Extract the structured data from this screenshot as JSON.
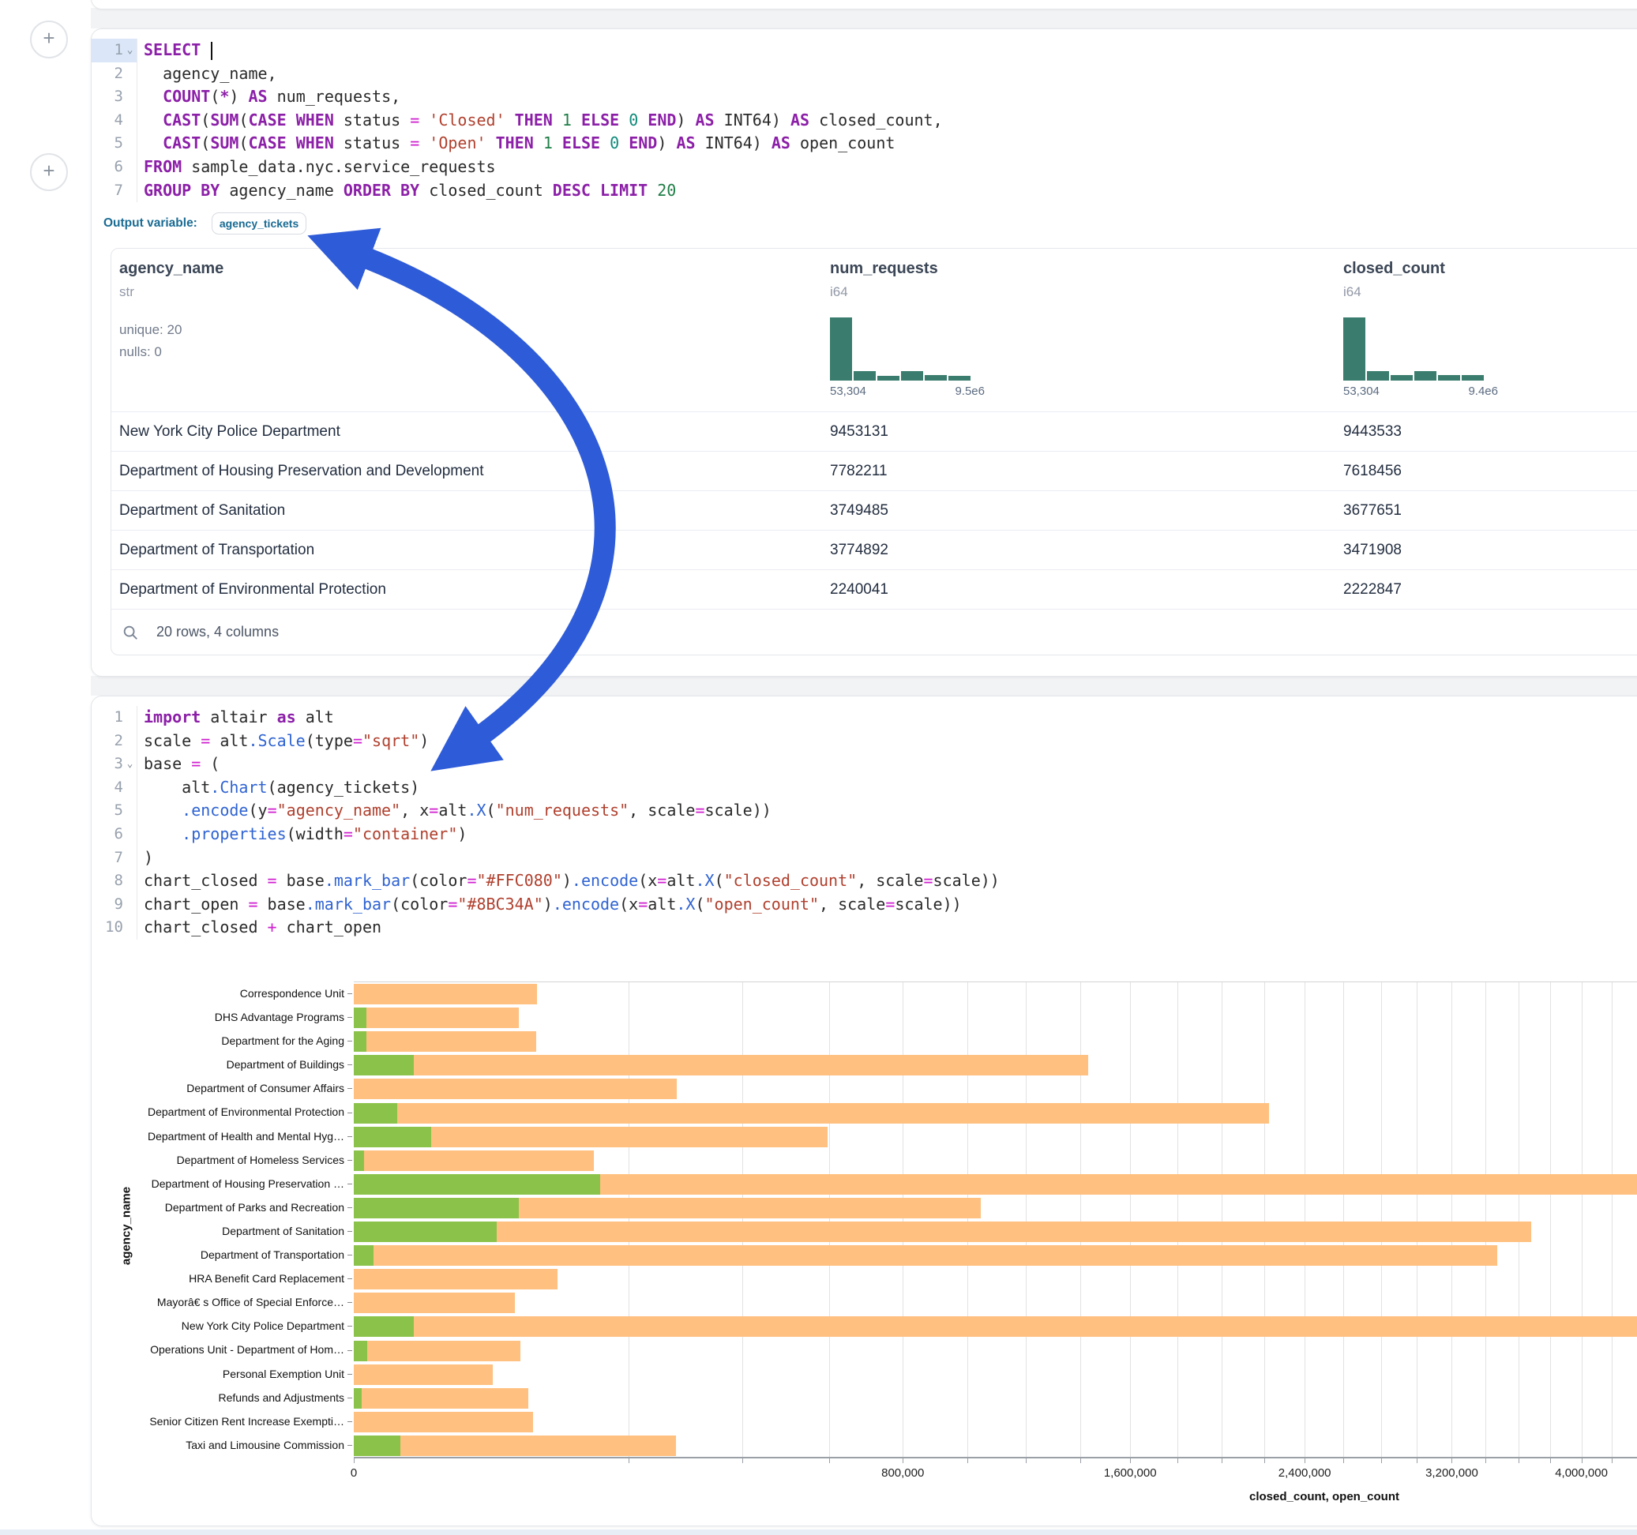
{
  "colors": {
    "closed_bar": "#FFC080",
    "open_bar": "#8BC34A",
    "histogram": "#3a7d6e",
    "arrow": "#2e5bd8",
    "accent_teal": "#1a6b93"
  },
  "sql_cell": {
    "add_button_label": "+",
    "lines": [
      {
        "n": "1",
        "chev": true,
        "hl": true,
        "cursor": true,
        "t": [
          [
            "kw",
            "SELECT"
          ],
          [
            "pl",
            " "
          ]
        ]
      },
      {
        "n": "2",
        "t": [
          [
            "pl",
            "  agency_name,"
          ]
        ]
      },
      {
        "n": "3",
        "t": [
          [
            "pl",
            "  "
          ],
          [
            "kw",
            "COUNT"
          ],
          [
            "pl",
            "("
          ],
          [
            "kw",
            "*"
          ],
          [
            "pl",
            ") "
          ],
          [
            "kw",
            "AS"
          ],
          [
            "pl",
            " num_requests,"
          ]
        ]
      },
      {
        "n": "4",
        "t": [
          [
            "pl",
            "  "
          ],
          [
            "kw",
            "CAST"
          ],
          [
            "pl",
            "("
          ],
          [
            "kw",
            "SUM"
          ],
          [
            "pl",
            "("
          ],
          [
            "kw",
            "CASE"
          ],
          [
            "pl",
            " "
          ],
          [
            "kw",
            "WHEN"
          ],
          [
            "pl",
            " status "
          ],
          [
            "op",
            "="
          ],
          [
            "pl",
            " "
          ],
          [
            "str",
            "'Closed'"
          ],
          [
            "pl",
            " "
          ],
          [
            "kw",
            "THEN"
          ],
          [
            "pl",
            " "
          ],
          [
            "num",
            "1"
          ],
          [
            "pl",
            " "
          ],
          [
            "kw",
            "ELSE"
          ],
          [
            "pl",
            " "
          ],
          [
            "num0",
            "0"
          ],
          [
            "pl",
            " "
          ],
          [
            "kw",
            "END"
          ],
          [
            "pl",
            ") "
          ],
          [
            "kw",
            "AS"
          ],
          [
            "pl",
            " INT64) "
          ],
          [
            "kw",
            "AS"
          ],
          [
            "pl",
            " closed_count,"
          ]
        ]
      },
      {
        "n": "5",
        "t": [
          [
            "pl",
            "  "
          ],
          [
            "kw",
            "CAST"
          ],
          [
            "pl",
            "("
          ],
          [
            "kw",
            "SUM"
          ],
          [
            "pl",
            "("
          ],
          [
            "kw",
            "CASE"
          ],
          [
            "pl",
            " "
          ],
          [
            "kw",
            "WHEN"
          ],
          [
            "pl",
            " status "
          ],
          [
            "op",
            "="
          ],
          [
            "pl",
            " "
          ],
          [
            "str",
            "'Open'"
          ],
          [
            "pl",
            " "
          ],
          [
            "kw",
            "THEN"
          ],
          [
            "pl",
            " "
          ],
          [
            "num",
            "1"
          ],
          [
            "pl",
            " "
          ],
          [
            "kw",
            "ELSE"
          ],
          [
            "pl",
            " "
          ],
          [
            "num0",
            "0"
          ],
          [
            "pl",
            " "
          ],
          [
            "kw",
            "END"
          ],
          [
            "pl",
            ") "
          ],
          [
            "kw",
            "AS"
          ],
          [
            "pl",
            " INT64) "
          ],
          [
            "kw",
            "AS"
          ],
          [
            "pl",
            " open_count"
          ]
        ]
      },
      {
        "n": "6",
        "t": [
          [
            "kw",
            "FROM"
          ],
          [
            "pl",
            " sample_data.nyc.service_requests"
          ]
        ]
      },
      {
        "n": "7",
        "t": [
          [
            "kw",
            "GROUP BY"
          ],
          [
            "pl",
            " agency_name "
          ],
          [
            "kw",
            "ORDER BY"
          ],
          [
            "pl",
            " closed_count "
          ],
          [
            "kw",
            "DESC"
          ],
          [
            "pl",
            " "
          ],
          [
            "kw",
            "LIMIT"
          ],
          [
            "pl",
            " "
          ],
          [
            "num",
            "20"
          ]
        ]
      }
    ],
    "output_variable_label": "Output variable:",
    "output_variable_value": "agency_tickets"
  },
  "table": {
    "columns": [
      {
        "name": "agency_name",
        "type": "str",
        "stats": [
          "unique: 20",
          "nulls: 0"
        ]
      },
      {
        "name": "num_requests",
        "type": "i64",
        "hist": {
          "bars": [
            100,
            15,
            8,
            15,
            9,
            8
          ],
          "min_label": "53,304",
          "max_label": "9.5e6"
        }
      },
      {
        "name": "closed_count",
        "type": "i64",
        "hist": {
          "bars": [
            100,
            15,
            9,
            15,
            9,
            9
          ],
          "min_label": "53,304",
          "max_label": "9.4e6"
        }
      }
    ],
    "rows": [
      [
        "New York City Police Department",
        "9453131",
        "9443533"
      ],
      [
        "Department of Housing Preservation and Development",
        "7782211",
        "7618456"
      ],
      [
        "Department of Sanitation",
        "3749485",
        "3677651"
      ],
      [
        "Department of Transportation",
        "3774892",
        "3471908"
      ],
      [
        "Department of Environmental Protection",
        "2240041",
        "2222847"
      ]
    ],
    "footer": "20 rows, 4 columns"
  },
  "python_cell": {
    "add_button_label": "+",
    "lines": [
      {
        "n": "1",
        "t": [
          [
            "kw",
            "import"
          ],
          [
            "pl",
            " altair "
          ],
          [
            "kw",
            "as"
          ],
          [
            "pl",
            " alt"
          ]
        ]
      },
      {
        "n": "2",
        "t": [
          [
            "pl",
            "scale "
          ],
          [
            "op",
            "="
          ],
          [
            "pl",
            " alt"
          ],
          [
            "fn",
            ".Scale"
          ],
          [
            "pl",
            "(type"
          ],
          [
            "op",
            "="
          ],
          [
            "str",
            "\"sqrt\""
          ],
          [
            "pl",
            ")"
          ]
        ]
      },
      {
        "n": "3",
        "chev": true,
        "t": [
          [
            "pl",
            "base "
          ],
          [
            "op",
            "="
          ],
          [
            "pl",
            " ("
          ]
        ]
      },
      {
        "n": "4",
        "t": [
          [
            "pl",
            "    alt"
          ],
          [
            "fn",
            ".Chart"
          ],
          [
            "pl",
            "(agency_tickets)"
          ]
        ]
      },
      {
        "n": "5",
        "t": [
          [
            "pl",
            "    "
          ],
          [
            "fn",
            ".encode"
          ],
          [
            "pl",
            "(y"
          ],
          [
            "op",
            "="
          ],
          [
            "str",
            "\"agency_name\""
          ],
          [
            "pl",
            ", x"
          ],
          [
            "op",
            "="
          ],
          [
            "pl",
            "alt"
          ],
          [
            "fn",
            ".X"
          ],
          [
            "pl",
            "("
          ],
          [
            "str",
            "\"num_requests\""
          ],
          [
            "pl",
            ", scale"
          ],
          [
            "op",
            "="
          ],
          [
            "pl",
            "scale))"
          ]
        ]
      },
      {
        "n": "6",
        "t": [
          [
            "pl",
            "    "
          ],
          [
            "fn",
            ".properties"
          ],
          [
            "pl",
            "(width"
          ],
          [
            "op",
            "="
          ],
          [
            "str",
            "\"container\""
          ],
          [
            "pl",
            ")"
          ]
        ]
      },
      {
        "n": "7",
        "t": [
          [
            "pl",
            ")"
          ]
        ]
      },
      {
        "n": "8",
        "t": [
          [
            "pl",
            "chart_closed "
          ],
          [
            "op",
            "="
          ],
          [
            "pl",
            " base"
          ],
          [
            "fn",
            ".mark_bar"
          ],
          [
            "pl",
            "(color"
          ],
          [
            "op",
            "="
          ],
          [
            "str",
            "\"#FFC080\""
          ],
          [
            "pl",
            ")"
          ],
          [
            "fn",
            ".encode"
          ],
          [
            "pl",
            "(x"
          ],
          [
            "op",
            "="
          ],
          [
            "pl",
            "alt"
          ],
          [
            "fn",
            ".X"
          ],
          [
            "pl",
            "("
          ],
          [
            "str",
            "\"closed_count\""
          ],
          [
            "pl",
            ", scale"
          ],
          [
            "op",
            "="
          ],
          [
            "pl",
            "scale))"
          ]
        ]
      },
      {
        "n": "9",
        "t": [
          [
            "pl",
            "chart_open "
          ],
          [
            "op",
            "="
          ],
          [
            "pl",
            " base"
          ],
          [
            "fn",
            ".mark_bar"
          ],
          [
            "pl",
            "(color"
          ],
          [
            "op",
            "="
          ],
          [
            "str",
            "\"#8BC34A\""
          ],
          [
            "pl",
            ")"
          ],
          [
            "fn",
            ".encode"
          ],
          [
            "pl",
            "(x"
          ],
          [
            "op",
            "="
          ],
          [
            "pl",
            "alt"
          ],
          [
            "fn",
            ".X"
          ],
          [
            "pl",
            "("
          ],
          [
            "str",
            "\"open_count\""
          ],
          [
            "pl",
            ", scale"
          ],
          [
            "op",
            "="
          ],
          [
            "pl",
            "scale))"
          ]
        ]
      },
      {
        "n": "10",
        "t": [
          [
            "pl",
            "chart_closed "
          ],
          [
            "op",
            "+"
          ],
          [
            "pl",
            " chart_open"
          ]
        ]
      }
    ]
  },
  "chart_data": {
    "type": "bar",
    "orientation": "horizontal",
    "scale_type": "sqrt",
    "xlabel": "closed_count, open_count",
    "ylabel": "agency_name",
    "x_domain": [
      0,
      10000000
    ],
    "x_tick_step": 200000,
    "x_label_step": 800000,
    "grid": true,
    "categories": [
      "Correspondence Unit",
      "DHS Advantage Programs",
      "Department for the Aging",
      "Department of Buildings",
      "Department of Consumer Affairs",
      "Department of Environmental Protection",
      "Department of Health and Mental Hyg…",
      "Department of Homeless Services",
      "Department of Housing Preservation …",
      "Department of Parks and Recreation",
      "Department of Sanitation",
      "Department of Transportation",
      "HRA Benefit Card Replacement",
      "Mayorâ€ s Office of Special Enforce…",
      "New York City Police Department",
      "Operations Unit - Department of Hom…",
      "Personal Exemption Unit",
      "Refunds and Adjustments",
      "Senior Citizen Rent Increase Exempti…",
      "Taxi and Limousine Commission"
    ],
    "series": [
      {
        "name": "closed_count",
        "color": "#FFC080",
        "values": [
          89000,
          72000,
          88000,
          1430000,
          277000,
          2222847,
          595000,
          153000,
          7618456,
          1044000,
          3677651,
          3471908,
          110000,
          69000,
          9443533,
          74000,
          51000,
          81000,
          85000,
          275000
        ]
      },
      {
        "name": "open_count",
        "color": "#8BC34A",
        "values": [
          0,
          400,
          400,
          9500,
          0,
          5000,
          16000,
          300,
          161000,
          72000,
          54000,
          1000,
          0,
          0,
          9600,
          500,
          0,
          150,
          0,
          5700
        ]
      }
    ]
  }
}
